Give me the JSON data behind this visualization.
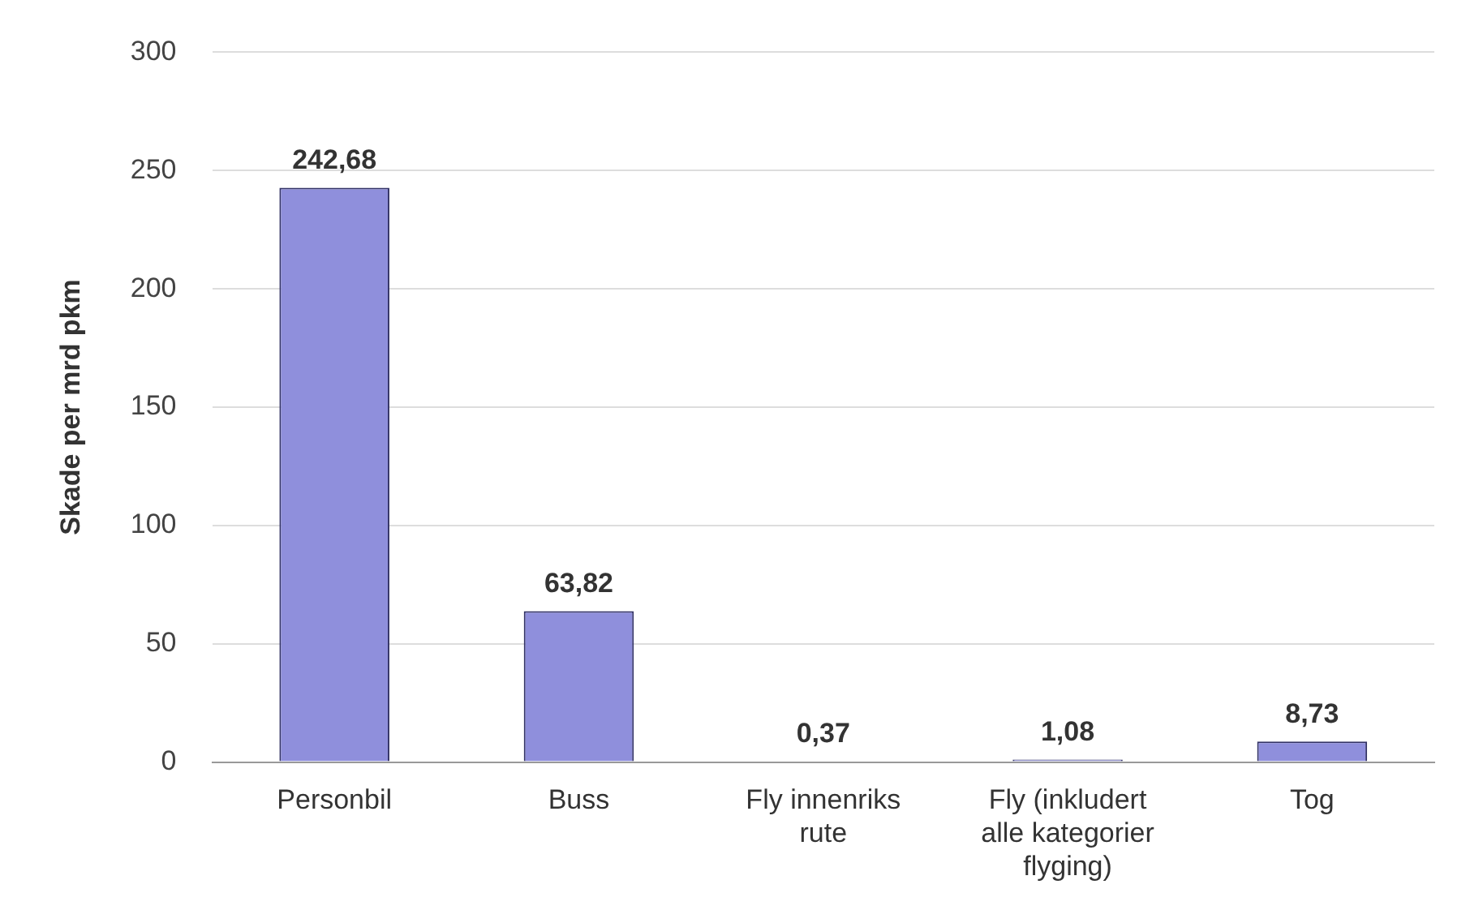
{
  "chart_data": {
    "type": "bar",
    "ylabel": "Skade per mrd pkm",
    "categories": [
      "Personbil",
      "Buss",
      "Fly innenriks rute",
      "Fly (inkludert alle kategorier flyging)",
      "Tog"
    ],
    "values": [
      242.68,
      63.82,
      0.37,
      1.08,
      8.73
    ],
    "value_labels": [
      "242,68",
      "63,82",
      "0,37",
      "1,08",
      "8,73"
    ],
    "color": "#8f8fdc",
    "ylim": [
      0,
      300
    ],
    "yticks": [
      0,
      50,
      100,
      150,
      200,
      250,
      300
    ],
    "grid": "y",
    "legend": false
  }
}
